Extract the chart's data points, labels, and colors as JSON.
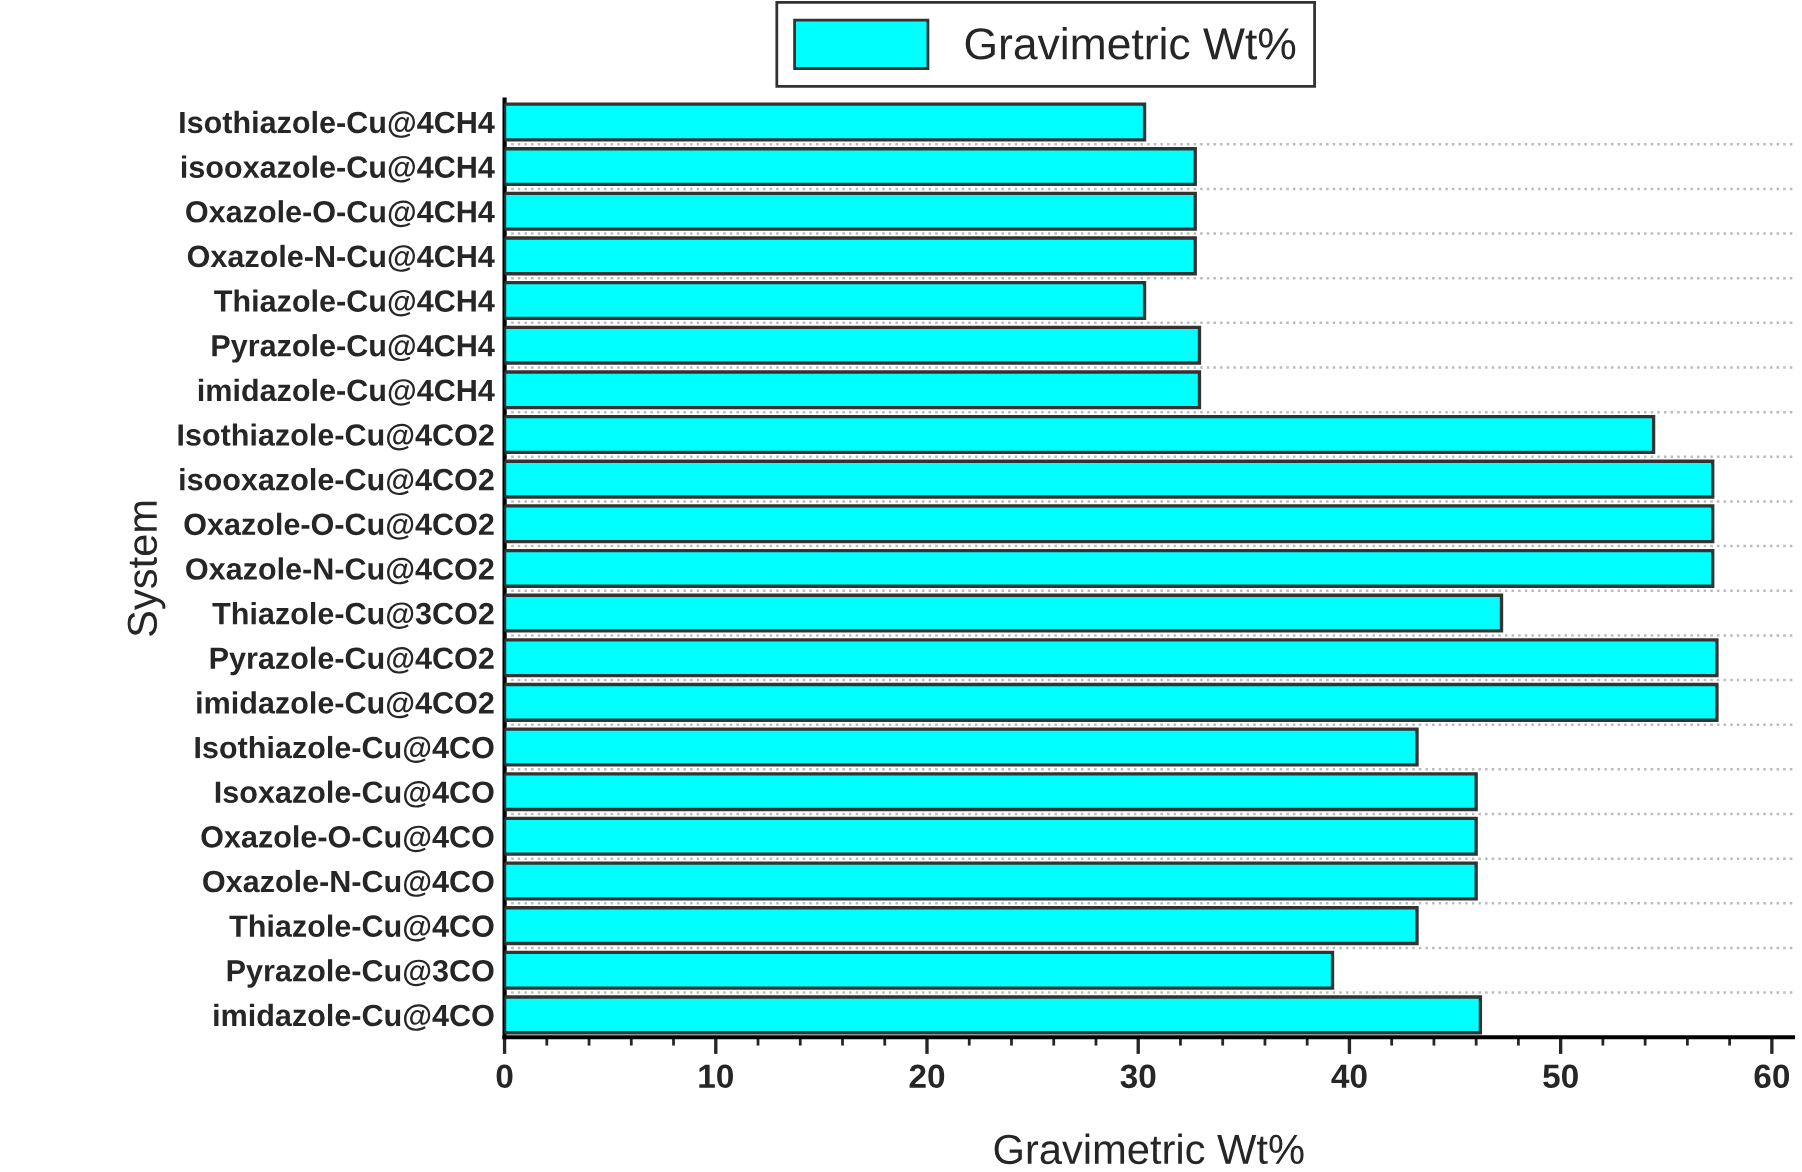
{
  "chart_data": {
    "type": "bar",
    "orientation": "horizontal",
    "xlabel": "Gravimetric Wt%",
    "ylabel": "System",
    "categories": [
      "Isothiazole-Cu@4CH4",
      "isooxazole-Cu@4CH4",
      "Oxazole-O-Cu@4CH4",
      "Oxazole-N-Cu@4CH4",
      "Thiazole-Cu@4CH4",
      "Pyrazole-Cu@4CH4",
      "imidazole-Cu@4CH4",
      "Isothiazole-Cu@4CO2",
      "isooxazole-Cu@4CO2",
      "Oxazole-O-Cu@4CO2",
      "Oxazole-N-Cu@4CO2",
      "Thiazole-Cu@3CO2",
      "Pyrazole-Cu@4CO2",
      "imidazole-Cu@4CO2",
      "Isothiazole-Cu@4CO",
      "Isoxazole-Cu@4CO",
      "Oxazole-O-Cu@4CO",
      "Oxazole-N-Cu@4CO",
      "Thiazole-Cu@4CO",
      "Pyrazole-Cu@3CO",
      "imidazole-Cu@4CO"
    ],
    "series": [
      {
        "name": "Gravimetric Wt%",
        "color": "#00ffff",
        "values": [
          30.3,
          32.7,
          32.7,
          32.7,
          30.3,
          32.9,
          32.9,
          54.4,
          57.2,
          57.2,
          57.2,
          47.2,
          57.4,
          57.4,
          43.2,
          46.0,
          46.0,
          46.0,
          43.2,
          39.2,
          46.2
        ]
      }
    ],
    "xlim": [
      0,
      61
    ],
    "xticks": [
      0,
      10,
      20,
      30,
      40,
      50,
      60
    ],
    "grid": "y",
    "legend": "top"
  }
}
